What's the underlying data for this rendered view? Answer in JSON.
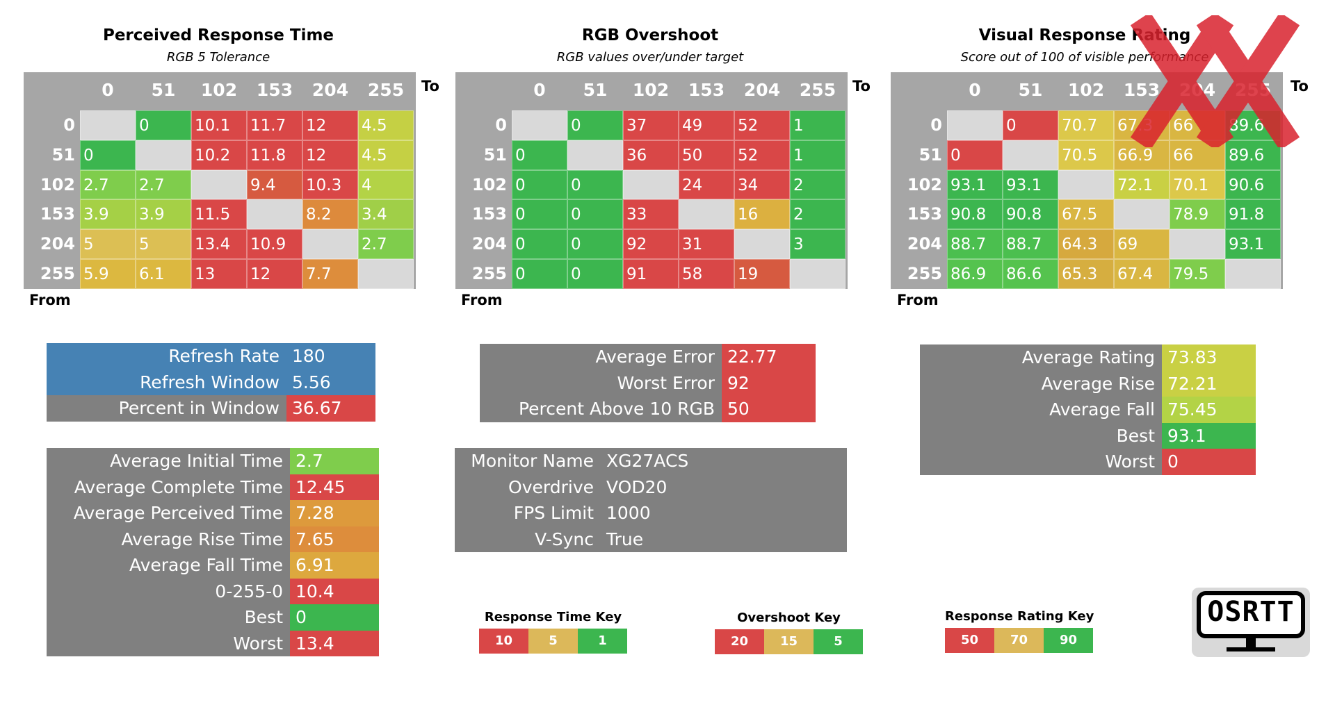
{
  "panels": [
    {
      "title": "Perceived Response Time",
      "subtitle": "RGB 5 Tolerance",
      "to_label": "To",
      "from_label": "From",
      "levels": [
        "0",
        "51",
        "102",
        "153",
        "204",
        "255"
      ]
    },
    {
      "title": "RGB Overshoot",
      "subtitle": "RGB values over/under target",
      "to_label": "To",
      "from_label": "From",
      "levels": [
        "0",
        "51",
        "102",
        "153",
        "204",
        "255"
      ]
    },
    {
      "title": "Visual Response Rating",
      "subtitle": "Score out of 100 of visible performance",
      "to_label": "To",
      "from_label": "From",
      "levels": [
        "0",
        "51",
        "102",
        "153",
        "204",
        "255"
      ]
    }
  ],
  "chart_data": [
    {
      "type": "heatmap",
      "title": "Perceived Response Time",
      "subtitle": "RGB 5 Tolerance",
      "xlabel": "To",
      "ylabel": "From",
      "x": [
        "0",
        "51",
        "102",
        "153",
        "204",
        "255"
      ],
      "y": [
        "0",
        "51",
        "102",
        "153",
        "204",
        "255"
      ],
      "values": [
        [
          "",
          "0",
          "10.1",
          "11.7",
          "12",
          "4.5"
        ],
        [
          "0",
          "",
          "10.2",
          "11.8",
          "12",
          "4.5"
        ],
        [
          "2.7",
          "2.7",
          "",
          "9.4",
          "10.3",
          "4"
        ],
        [
          "3.9",
          "3.9",
          "11.5",
          "",
          "8.2",
          "3.4"
        ],
        [
          "5",
          "5",
          "13.4",
          "10.9",
          "",
          "2.7"
        ],
        [
          "5.9",
          "6.1",
          "13",
          "12",
          "7.7",
          ""
        ]
      ],
      "colors": [
        [
          "#d9d9d9",
          "#3cb64f",
          "#d94747",
          "#d94747",
          "#d94747",
          "#c5d044"
        ],
        [
          "#3cb64f",
          "#d9d9d9",
          "#d94747",
          "#d94747",
          "#d94747",
          "#c5d044"
        ],
        [
          "#7fcd4c",
          "#7fcd4c",
          "#d9d9d9",
          "#d65a40",
          "#d94747",
          "#b3d346"
        ],
        [
          "#a5d046",
          "#a5d046",
          "#d94747",
          "#d9d9d9",
          "#dd8a3c",
          "#a0cf48"
        ],
        [
          "#dcbf54",
          "#dcbf54",
          "#d94747",
          "#d94747",
          "#d9d9d9",
          "#7fcd4c"
        ],
        [
          "#dcb840",
          "#dcb840",
          "#d94747",
          "#d94747",
          "#dd8d3c",
          "#d9d9d9"
        ]
      ]
    },
    {
      "type": "heatmap",
      "title": "RGB Overshoot",
      "subtitle": "RGB values over/under target",
      "xlabel": "To",
      "ylabel": "From",
      "x": [
        "0",
        "51",
        "102",
        "153",
        "204",
        "255"
      ],
      "y": [
        "0",
        "51",
        "102",
        "153",
        "204",
        "255"
      ],
      "values": [
        [
          "",
          "0",
          "37",
          "49",
          "52",
          "1"
        ],
        [
          "0",
          "",
          "36",
          "50",
          "52",
          "1"
        ],
        [
          "0",
          "0",
          "",
          "24",
          "34",
          "2"
        ],
        [
          "0",
          "0",
          "33",
          "",
          "16",
          "2"
        ],
        [
          "0",
          "0",
          "92",
          "31",
          "",
          "3"
        ],
        [
          "0",
          "0",
          "91",
          "58",
          "19",
          ""
        ]
      ],
      "colors": [
        [
          "#d9d9d9",
          "#3cb64f",
          "#d94747",
          "#d94747",
          "#d94747",
          "#3cb64f"
        ],
        [
          "#3cb64f",
          "#d9d9d9",
          "#d94747",
          "#d94747",
          "#d94747",
          "#3cb64f"
        ],
        [
          "#3cb64f",
          "#3cb64f",
          "#d9d9d9",
          "#d94747",
          "#d94747",
          "#3cb64f"
        ],
        [
          "#3cb64f",
          "#3cb64f",
          "#d94747",
          "#d9d9d9",
          "#dcb040",
          "#3cb64f"
        ],
        [
          "#3cb64f",
          "#3cb64f",
          "#d94747",
          "#d94747",
          "#d9d9d9",
          "#3cb64f"
        ],
        [
          "#3cb64f",
          "#3cb64f",
          "#d94747",
          "#d94747",
          "#d65a40",
          "#d9d9d9"
        ]
      ]
    },
    {
      "type": "heatmap",
      "title": "Visual Response Rating",
      "subtitle": "Score out of 100 of visible performance",
      "xlabel": "To",
      "ylabel": "From",
      "x": [
        "0",
        "51",
        "102",
        "153",
        "204",
        "255"
      ],
      "y": [
        "0",
        "51",
        "102",
        "153",
        "204",
        "255"
      ],
      "values": [
        [
          "",
          "0",
          "70.7",
          "67.3",
          "66",
          "89.6"
        ],
        [
          "0",
          "",
          "70.5",
          "66.9",
          "66",
          "89.6"
        ],
        [
          "93.1",
          "93.1",
          "",
          "72.1",
          "70.1",
          "90.6"
        ],
        [
          "90.8",
          "90.8",
          "67.5",
          "",
          "78.9",
          "91.8"
        ],
        [
          "88.7",
          "88.7",
          "64.3",
          "69",
          "",
          "93.1"
        ],
        [
          "86.9",
          "86.6",
          "65.3",
          "67.4",
          "79.5",
          ""
        ]
      ],
      "colors": [
        [
          "#d9d9d9",
          "#d94747",
          "#dcc84a",
          "#d9b642",
          "#d9b642",
          "#3cb64f"
        ],
        [
          "#d94747",
          "#d9d9d9",
          "#dcc84a",
          "#d9b642",
          "#d9b642",
          "#3cb64f"
        ],
        [
          "#3cb64f",
          "#3cb64f",
          "#d9d9d9",
          "#c9d044",
          "#dcc84a",
          "#3cb64f"
        ],
        [
          "#3cb64f",
          "#3cb64f",
          "#d9b642",
          "#d9d9d9",
          "#7fcd4c",
          "#3cb64f"
        ],
        [
          "#4bbf4f",
          "#4bbf4f",
          "#d6a93e",
          "#d9b642",
          "#d9d9d9",
          "#3cb64f"
        ],
        [
          "#55c34e",
          "#55c34e",
          "#d6ae40",
          "#d9b642",
          "#7fcd4c",
          "#d9d9d9"
        ]
      ]
    }
  ],
  "stats_refresh": {
    "rows": [
      {
        "label": "Refresh Rate",
        "value": "180",
        "label_bg": "#4682b4",
        "value_bg": "#4682b4"
      },
      {
        "label": "Refresh Window",
        "value": "5.56",
        "label_bg": "#4682b4",
        "value_bg": "#4682b4"
      },
      {
        "label": "Percent in Window",
        "value": "36.67",
        "label_bg": "#808080",
        "value_bg": "#d94747"
      }
    ]
  },
  "stats_times": {
    "rows": [
      {
        "label": "Average Initial Time",
        "value": "2.7",
        "value_bg": "#7fcd4c"
      },
      {
        "label": "Average Complete Time",
        "value": "12.45",
        "value_bg": "#d94747"
      },
      {
        "label": "Average Perceived Time",
        "value": "7.28",
        "value_bg": "#dd9a3c"
      },
      {
        "label": "Average Rise Time",
        "value": "7.65",
        "value_bg": "#dd8d3c"
      },
      {
        "label": "Average Fall Time",
        "value": "6.91",
        "value_bg": "#dda83e"
      },
      {
        "label": "0-255-0",
        "value": "10.4",
        "value_bg": "#d94747"
      },
      {
        "label": "Best",
        "value": "0",
        "value_bg": "#3cb64f"
      },
      {
        "label": "Worst",
        "value": "13.4",
        "value_bg": "#d94747"
      }
    ]
  },
  "stats_overshoot": {
    "rows": [
      {
        "label": "Average Error",
        "value": "22.77",
        "value_bg": "#d94747"
      },
      {
        "label": "Worst Error",
        "value": "92",
        "value_bg": "#d94747"
      },
      {
        "label": "Percent Above 10 RGB",
        "value": "50",
        "value_bg": "#d94747"
      }
    ]
  },
  "stats_monitor": {
    "rows": [
      {
        "label": "Monitor Name",
        "value": "XG27ACS"
      },
      {
        "label": "Overdrive",
        "value": "VOD20"
      },
      {
        "label": "FPS Limit",
        "value": "1000"
      },
      {
        "label": "V-Sync",
        "value": "True"
      }
    ]
  },
  "stats_rating": {
    "rows": [
      {
        "label": "Average Rating",
        "value": "73.83",
        "value_bg": "#c9d044"
      },
      {
        "label": "Average Rise",
        "value": "72.21",
        "value_bg": "#c9d044"
      },
      {
        "label": "Average Fall",
        "value": "75.45",
        "value_bg": "#b3d346"
      },
      {
        "label": "Best",
        "value": "93.1",
        "value_bg": "#3cb64f"
      },
      {
        "label": "Worst",
        "value": "0",
        "value_bg": "#d94747"
      }
    ]
  },
  "keys": [
    {
      "title": "Response Time Key",
      "cells": [
        {
          "label": "10",
          "bg": "#d94747"
        },
        {
          "label": "5",
          "bg": "#dcb85a"
        },
        {
          "label": "1",
          "bg": "#3cb64f"
        }
      ]
    },
    {
      "title": "Overshoot Key",
      "cells": [
        {
          "label": "20",
          "bg": "#d94747"
        },
        {
          "label": "15",
          "bg": "#dcb85a"
        },
        {
          "label": "5",
          "bg": "#3cb64f"
        }
      ]
    },
    {
      "title": "Response Rating Key",
      "cells": [
        {
          "label": "50",
          "bg": "#d94747"
        },
        {
          "label": "70",
          "bg": "#dcb85a"
        },
        {
          "label": "90",
          "bg": "#3cb64f"
        }
      ]
    }
  ],
  "logo": {
    "text": "OSRTT",
    "icon": "monitor-logo-icon"
  },
  "watermark": {
    "icon": "red-xx-watermark-icon",
    "color": "#d9232e"
  },
  "colors": {
    "label_gray": "#808080",
    "matrix_gray": "#a6a6a6",
    "diag": "#d9d9d9"
  }
}
